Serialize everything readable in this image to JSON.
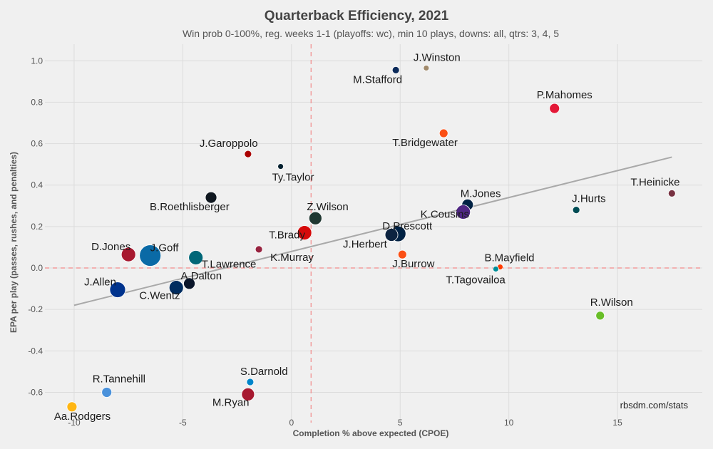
{
  "chart_data": {
    "type": "scatter",
    "title": "Quarterback Efficiency, 2021",
    "subtitle": "Win prob 0-100%, reg. weeks 1-1 (playoffs: wc), min 10 plays, downs: all, qtrs: 3, 4, 5",
    "xlabel": "Completion % above expected (CPOE)",
    "ylabel": "EPA per play (passes, rushes, and penalties)",
    "credit": "rbsdm.com/stats",
    "xlim": [
      -12,
      18.9
    ],
    "ylim": [
      -0.76,
      1.08
    ],
    "x_ticks": [
      -10,
      -5,
      0,
      5,
      10,
      15
    ],
    "x_tick_labels": [
      "-10",
      "-5",
      "0",
      "5",
      "10",
      "15"
    ],
    "y_ticks": [
      -0.6,
      -0.4,
      -0.2,
      0.0,
      0.2,
      0.4,
      0.6,
      0.8,
      1.0
    ],
    "y_tick_labels": [
      "-0.6",
      "-0.4",
      "-0.2",
      "0.0",
      "0.2",
      "0.4",
      "0.6",
      "0.8",
      "1.0"
    ],
    "grid": true,
    "mean_lines": {
      "x": 0.9,
      "y": 0.0,
      "color": "#f28b8b"
    },
    "trend_line": {
      "x": [
        -10,
        17.5
      ],
      "y": [
        -0.18,
        0.535
      ],
      "color": "#a9a9a9"
    },
    "points": [
      {
        "name": "J.Winston",
        "x": 6.2,
        "y": 0.965,
        "size": 4,
        "color": "#a0896a"
      },
      {
        "name": "M.Stafford",
        "x": 4.8,
        "y": 0.955,
        "size": 5,
        "color": "#0b2a5a"
      },
      {
        "name": "P.Mahomes",
        "x": 12.1,
        "y": 0.77,
        "size": 7,
        "color": "#e31837"
      },
      {
        "name": "T.Bridgewater",
        "x": 7.0,
        "y": 0.65,
        "size": 6,
        "color": "#fb4f14"
      },
      {
        "name": "J.Garoppolo",
        "x": -2.0,
        "y": 0.55,
        "size": 5,
        "color": "#aa0000"
      },
      {
        "name": "Ty.Taylor",
        "x": -0.5,
        "y": 0.49,
        "size": 4,
        "color": "#03202f"
      },
      {
        "name": "T.Heinicke",
        "x": 17.5,
        "y": 0.36,
        "size": 5,
        "color": "#773141"
      },
      {
        "name": "B.Roethlisberger",
        "x": -3.7,
        "y": 0.34,
        "size": 8,
        "color": "#101820"
      },
      {
        "name": "M.Jones",
        "x": 8.1,
        "y": 0.305,
        "size": 8,
        "color": "#002244"
      },
      {
        "name": "J.Hurts",
        "x": 13.1,
        "y": 0.28,
        "size": 5,
        "color": "#004c54"
      },
      {
        "name": "K.Cousins",
        "x": 7.9,
        "y": 0.27,
        "size": 10,
        "color": "#4f2683"
      },
      {
        "name": "Z.Wilson",
        "x": 1.1,
        "y": 0.24,
        "size": 9,
        "color": "#203731"
      },
      {
        "name": "T.Brady",
        "x": 0.6,
        "y": 0.17,
        "size": 10,
        "color": "#d50a0a"
      },
      {
        "name": "D.Prescott",
        "x": 4.9,
        "y": 0.165,
        "size": 11,
        "color": "#002244"
      },
      {
        "name": "J.Herbert",
        "x": 4.6,
        "y": 0.16,
        "size": 9,
        "color": "#0c2340"
      },
      {
        "name": "K.Murray",
        "x": -1.5,
        "y": 0.09,
        "size": 5,
        "color": "#97233f"
      },
      {
        "name": "D.Jones",
        "x": -7.5,
        "y": 0.065,
        "size": 10,
        "color": "#a71930"
      },
      {
        "name": "J.Goff",
        "x": -6.5,
        "y": 0.06,
        "size": 15,
        "color": "#0a6aa6"
      },
      {
        "name": "J.Burrow",
        "x": 5.1,
        "y": 0.065,
        "size": 6,
        "color": "#fb4f14"
      },
      {
        "name": "T.Lawrence",
        "x": -4.4,
        "y": 0.05,
        "size": 10,
        "color": "#006778"
      },
      {
        "name": "B.Mayfield",
        "x": 9.6,
        "y": 0.005,
        "size": 4,
        "color": "#ff3c00"
      },
      {
        "name": "T.Tagovailoa",
        "x": 9.4,
        "y": -0.005,
        "size": 4,
        "color": "#008e97"
      },
      {
        "name": "A.Dalton",
        "x": -4.7,
        "y": -0.075,
        "size": 8,
        "color": "#0b162a"
      },
      {
        "name": "C.Wentz",
        "x": -5.3,
        "y": -0.095,
        "size": 10,
        "color": "#002c5f"
      },
      {
        "name": "J.Allen",
        "x": -8.0,
        "y": -0.105,
        "size": 11,
        "color": "#00338d"
      },
      {
        "name": "R.Wilson",
        "x": 14.2,
        "y": -0.23,
        "size": 6,
        "color": "#69be28"
      },
      {
        "name": "S.Darnold",
        "x": -1.9,
        "y": -0.55,
        "size": 5,
        "color": "#0085ca"
      },
      {
        "name": "R.Tannehill",
        "x": -8.5,
        "y": -0.6,
        "size": 7,
        "color": "#4b92db"
      },
      {
        "name": "M.Ryan",
        "x": -2.0,
        "y": -0.61,
        "size": 9,
        "color": "#a71930"
      },
      {
        "name": "Aa.Rodgers",
        "x": -10.1,
        "y": -0.67,
        "size": 7,
        "color": "#ffb612"
      }
    ]
  }
}
